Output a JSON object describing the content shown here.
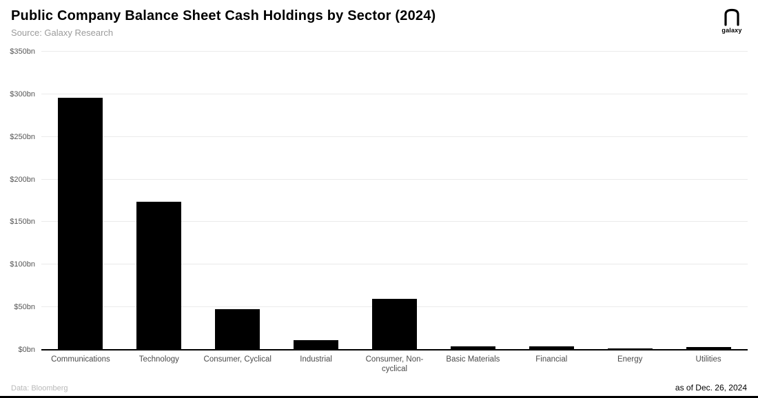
{
  "header": {
    "subtitle": "Source: Galaxy Research",
    "logo_text": "galaxy"
  },
  "footer": {
    "left": "Data: Bloomberg",
    "right": "as of Dec. 26, 2024"
  },
  "chart_data": {
    "type": "bar",
    "title": "Public Company Balance Sheet Cash Holdings by Sector (2024)",
    "categories": [
      "Communications",
      "Technology",
      "Consumer, Cyclical",
      "Industrial",
      "Consumer, Non-cyclical",
      "Basic Materials",
      "Financial",
      "Energy",
      "Utilities"
    ],
    "values": [
      296,
      174,
      48,
      11,
      60,
      4,
      4,
      2,
      3
    ],
    "xlabel": "",
    "ylabel": "",
    "ylim": [
      0,
      350
    ],
    "yticks": [
      0,
      50,
      100,
      150,
      200,
      250,
      300,
      350
    ],
    "ytick_labels": [
      "$0bn",
      "$50bn",
      "$100bn",
      "$150bn",
      "$200bn",
      "$250bn",
      "$300bn",
      "$350bn"
    ],
    "grid": true,
    "legend": false,
    "bar_color": "#000000"
  }
}
